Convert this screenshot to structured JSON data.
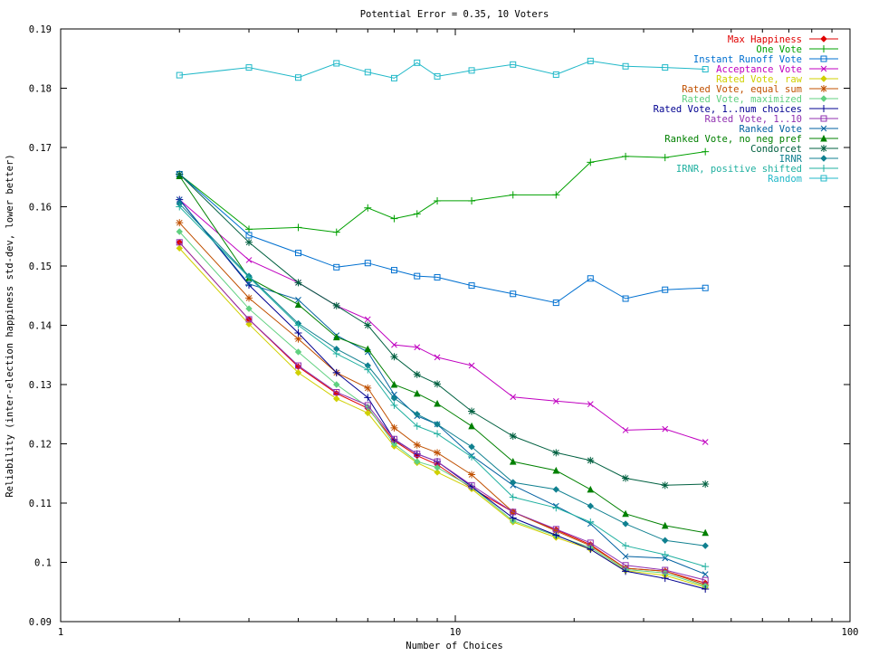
{
  "chart_data": {
    "type": "line",
    "title": "Potential Error = 0.35, 10 Voters",
    "xlabel": "Number of Choices",
    "ylabel": "Reliability (inter-election happiness std-dev, lower better)",
    "x_scale": "log",
    "xlim": [
      1,
      100
    ],
    "ylim": [
      0.09,
      0.19
    ],
    "x_ticks": [
      {
        "value": 1,
        "label": "1"
      },
      {
        "value": 10,
        "label": "10"
      },
      {
        "value": 100,
        "label": "100"
      }
    ],
    "y_ticks": [
      {
        "value": 0.09,
        "label": "0.09"
      },
      {
        "value": 0.1,
        "label": "0.1"
      },
      {
        "value": 0.11,
        "label": "0.11"
      },
      {
        "value": 0.12,
        "label": "0.12"
      },
      {
        "value": 0.13,
        "label": "0.13"
      },
      {
        "value": 0.14,
        "label": "0.14"
      },
      {
        "value": 0.15,
        "label": "0.15"
      },
      {
        "value": 0.16,
        "label": "0.16"
      },
      {
        "value": 0.17,
        "label": "0.17"
      },
      {
        "value": 0.18,
        "label": "0.18"
      },
      {
        "value": 0.19,
        "label": "0.19"
      }
    ],
    "legend_position": "top-right",
    "x": [
      2,
      3,
      4,
      5,
      6,
      7,
      8,
      9,
      11,
      14,
      18,
      22,
      27,
      34,
      43
    ],
    "series": [
      {
        "name": "Max Happiness",
        "color": "#e00000",
        "marker": "diamond",
        "values": [
          0.154,
          0.141,
          0.133,
          0.1285,
          0.126,
          0.1205,
          0.118,
          0.1165,
          0.1125,
          0.1085,
          0.1055,
          0.103,
          0.099,
          0.0985,
          0.0965
        ]
      },
      {
        "name": "One Vote",
        "color": "#00a000",
        "marker": "plus",
        "values": [
          0.1655,
          0.1562,
          0.1565,
          0.1557,
          0.1598,
          0.158,
          0.1588,
          0.161,
          0.161,
          0.162,
          0.162,
          0.1675,
          0.1685,
          0.1683,
          0.1693
        ]
      },
      {
        "name": "Instant Runoff Vote",
        "color": "#0070d0",
        "marker": "square",
        "values": [
          0.1655,
          0.1552,
          0.1522,
          0.1498,
          0.1505,
          0.1493,
          0.1483,
          0.1481,
          0.1467,
          0.1453,
          0.1438,
          0.1479,
          0.1445,
          0.146,
          0.1463
        ]
      },
      {
        "name": "Acceptance Vote",
        "color": "#c000c0",
        "marker": "x",
        "values": [
          0.1612,
          0.151,
          0.1472,
          0.1433,
          0.141,
          0.1367,
          0.1363,
          0.1346,
          0.1332,
          0.1279,
          0.1272,
          0.1267,
          0.1223,
          0.1225,
          0.1203
        ]
      },
      {
        "name": "Rated Vote, raw",
        "color": "#d0d000",
        "marker": "diamond",
        "values": [
          0.153,
          0.1402,
          0.132,
          0.1276,
          0.1252,
          0.1196,
          0.1168,
          0.1152,
          0.1124,
          0.1068,
          0.1042,
          0.1022,
          0.0986,
          0.0978,
          0.0958
        ]
      },
      {
        "name": "Rated Vote, equal sum",
        "color": "#c05000",
        "marker": "star",
        "values": [
          0.1573,
          0.1446,
          0.1377,
          0.132,
          0.1294,
          0.1227,
          0.1198,
          0.1185,
          0.1148,
          0.1085,
          0.1053,
          0.1028,
          0.099,
          0.0985,
          0.0962
        ]
      },
      {
        "name": "Rated Vote, maximized",
        "color": "#60d080",
        "marker": "diamond",
        "values": [
          0.1558,
          0.1428,
          0.1355,
          0.13,
          0.1262,
          0.12,
          0.117,
          0.116,
          0.1127,
          0.107,
          0.1045,
          0.1025,
          0.0988,
          0.0982,
          0.096
        ]
      },
      {
        "name": "Rated Vote, 1..num choices",
        "color": "#000090",
        "marker": "plus",
        "values": [
          0.1612,
          0.1468,
          0.1387,
          0.132,
          0.1278,
          0.1207,
          0.1183,
          0.117,
          0.1128,
          0.1075,
          0.1046,
          0.1022,
          0.0985,
          0.0973,
          0.0955
        ]
      },
      {
        "name": "Rated Vote, 1..10",
        "color": "#9030b0",
        "marker": "square",
        "values": [
          0.154,
          0.141,
          0.1332,
          0.1287,
          0.1265,
          0.1208,
          0.1183,
          0.117,
          0.113,
          0.1085,
          0.1056,
          0.1033,
          0.0995,
          0.0987,
          0.097
        ]
      },
      {
        "name": "Ranked Vote",
        "color": "#0060a0",
        "marker": "x",
        "values": [
          0.1612,
          0.147,
          0.1443,
          0.1383,
          0.1355,
          0.1283,
          0.1247,
          0.1233,
          0.118,
          0.113,
          0.1095,
          0.1065,
          0.101,
          0.1007,
          0.098
        ]
      },
      {
        "name": "Ranked Vote, no neg pref",
        "color": "#008000",
        "marker": "triangle",
        "values": [
          0.1652,
          0.148,
          0.1435,
          0.138,
          0.136,
          0.13,
          0.1285,
          0.1268,
          0.123,
          0.117,
          0.1155,
          0.1123,
          0.1082,
          0.1062,
          0.105
        ]
      },
      {
        "name": "Condorcet",
        "color": "#006040",
        "marker": "star",
        "values": [
          0.1655,
          0.154,
          0.1472,
          0.1433,
          0.14,
          0.1347,
          0.1317,
          0.1301,
          0.1255,
          0.1213,
          0.1185,
          0.1172,
          0.1142,
          0.113,
          0.1132
        ]
      },
      {
        "name": "IRNR",
        "color": "#108090",
        "marker": "diamond",
        "values": [
          0.1605,
          0.1483,
          0.1403,
          0.136,
          0.1332,
          0.1277,
          0.125,
          0.1233,
          0.1195,
          0.1135,
          0.1123,
          0.1095,
          0.1065,
          0.1037,
          0.1028
        ]
      },
      {
        "name": "IRNR, positive shifted",
        "color": "#20b0a0",
        "marker": "plus",
        "values": [
          0.16,
          0.1481,
          0.14,
          0.1352,
          0.1325,
          0.1265,
          0.123,
          0.1217,
          0.1178,
          0.111,
          0.1092,
          0.1068,
          0.1028,
          0.1013,
          0.0993
        ]
      },
      {
        "name": "Random",
        "color": "#20b8c8",
        "marker": "square",
        "x": [
          2,
          3,
          4,
          5,
          6,
          7,
          8,
          9,
          11,
          14,
          18,
          22,
          27,
          34,
          43
        ],
        "values": [
          0.1822,
          0.1835,
          0.1818,
          0.1842,
          0.1827,
          0.1817,
          0.1843,
          0.182,
          0.183,
          0.184,
          0.1823,
          0.1846,
          0.1837,
          0.1835,
          0.1832
        ]
      }
    ]
  }
}
